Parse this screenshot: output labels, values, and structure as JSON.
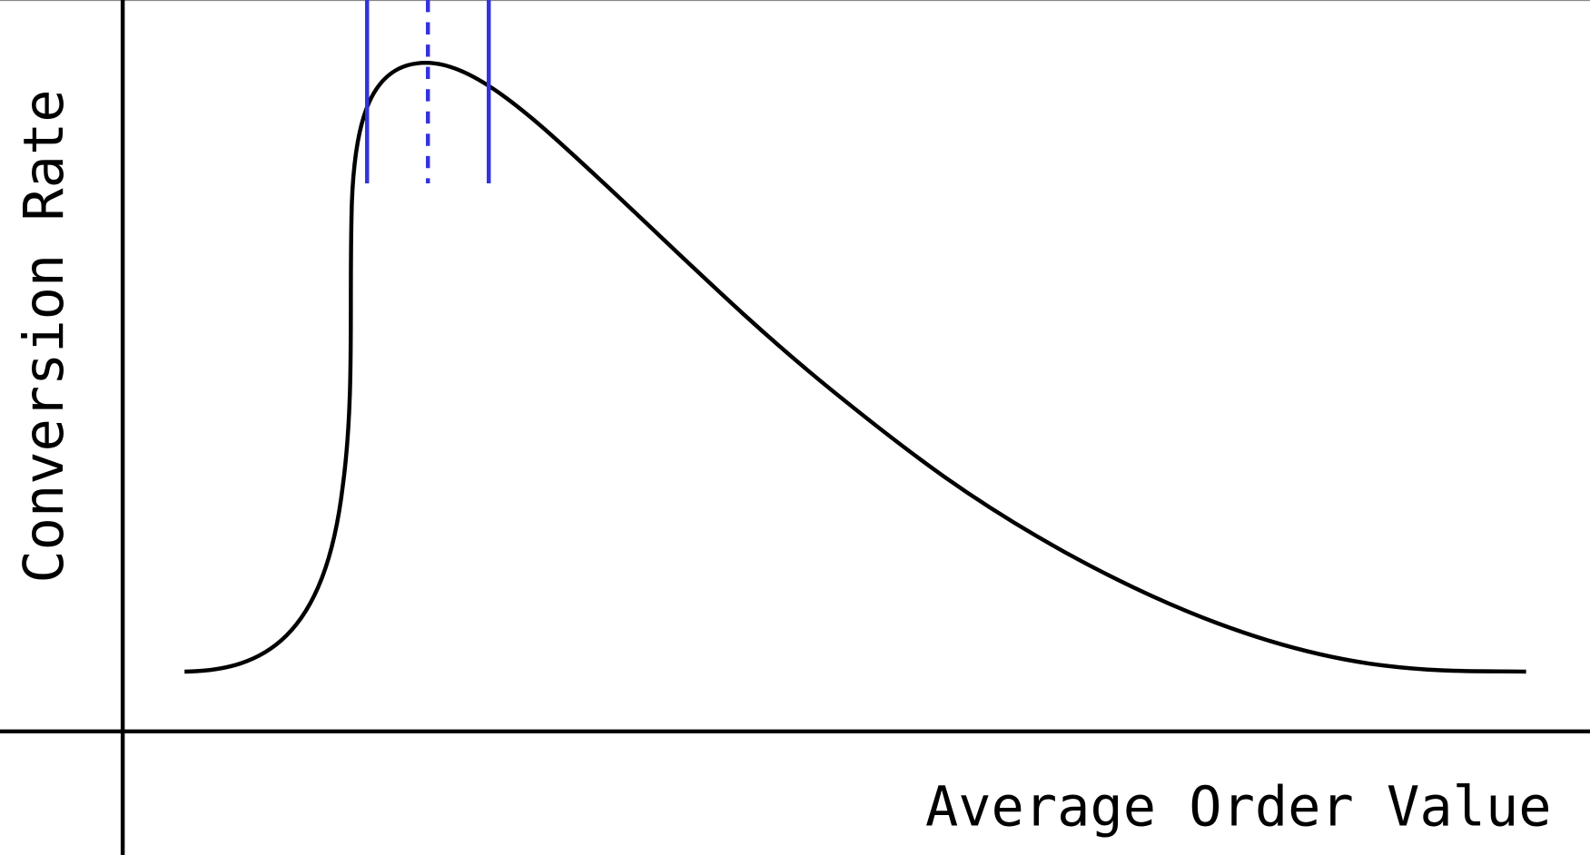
{
  "axes": {
    "y_label": "Conversion Rate",
    "x_label": "Average Order Value"
  }
}
